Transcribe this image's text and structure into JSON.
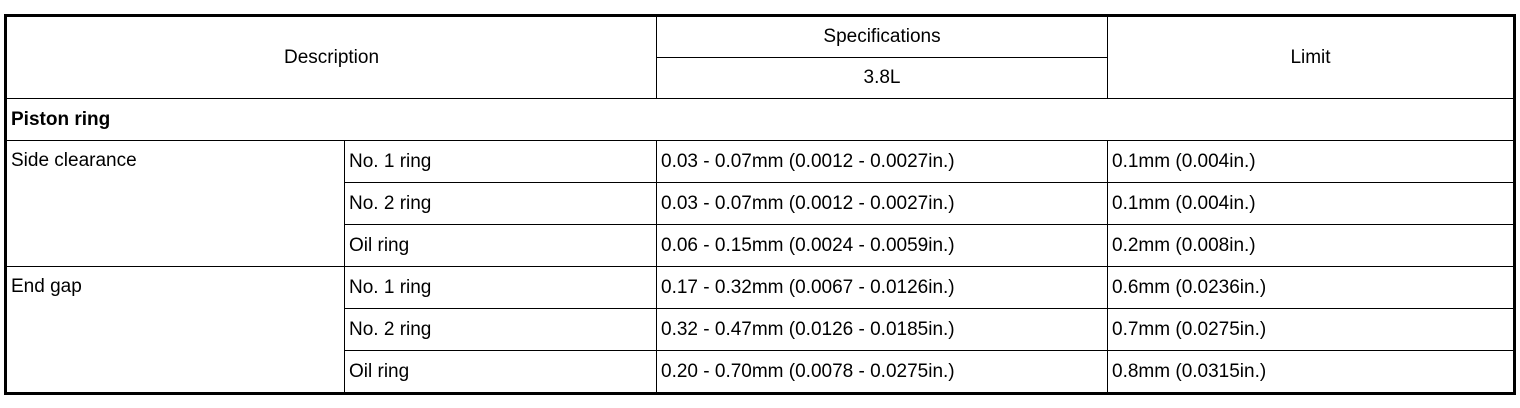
{
  "header": {
    "description": "Description",
    "specifications": "Specifications",
    "engine": "3.8L",
    "limit": "Limit"
  },
  "section": "Piston ring",
  "groups": [
    {
      "label": "Side clearance",
      "rows": [
        {
          "item": "No. 1 ring",
          "spec": "0.03 - 0.07mm (0.0012 - 0.0027in.)",
          "limit": "0.1mm (0.004in.)"
        },
        {
          "item": "No. 2 ring",
          "spec": "0.03 - 0.07mm (0.0012 - 0.0027in.)",
          "limit": "0.1mm (0.004in.)"
        },
        {
          "item": "Oil ring",
          "spec": "0.06 - 0.15mm (0.0024 - 0.0059in.)",
          "limit": "0.2mm (0.008in.)"
        }
      ]
    },
    {
      "label": "End gap",
      "rows": [
        {
          "item": "No. 1 ring",
          "spec": "0.17 - 0.32mm (0.0067 - 0.0126in.)",
          "limit": "0.6mm (0.0236in.)"
        },
        {
          "item": "No. 2 ring",
          "spec": "0.32 - 0.47mm (0.0126 - 0.0185in.)",
          "limit": "0.7mm (0.0275in.)"
        },
        {
          "item": "Oil ring",
          "spec": "0.20 - 0.70mm (0.0078 - 0.0275in.)",
          "limit": "0.8mm (0.0315in.)"
        }
      ]
    }
  ]
}
